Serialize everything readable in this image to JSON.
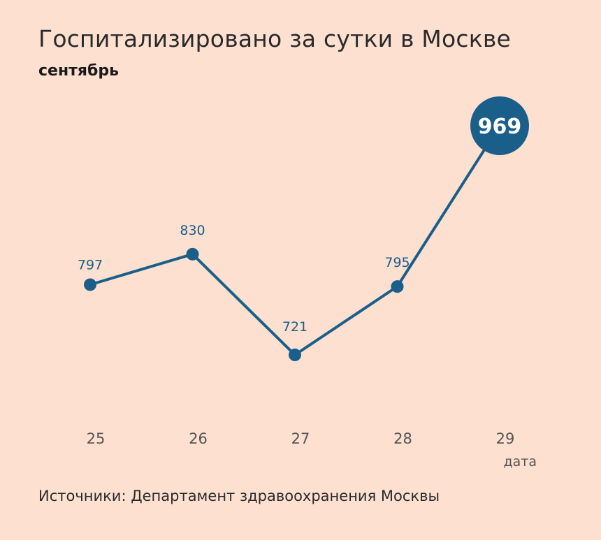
{
  "header": {
    "title": "Госпитализировано за сутки в Москве",
    "subtitle": "сентябрь"
  },
  "footer": {
    "source": "Источники: Департамент здравоохранения Москвы"
  },
  "colors": {
    "background": "#fde0d0",
    "line": "#1a5e8a",
    "highlight": "#1a5e8a"
  },
  "chart_data": {
    "type": "line",
    "title": "Госпитализировано за сутки в Москве",
    "subtitle": "сентябрь",
    "xlabel": "дата",
    "ylabel": "",
    "categories": [
      "25",
      "26",
      "27",
      "28",
      "29"
    ],
    "series": [
      {
        "values": [
          797,
          830,
          721,
          795,
          969
        ]
      }
    ],
    "data_labels": [
      "797",
      "830",
      "721",
      "795",
      "969"
    ],
    "highlight_index": 4,
    "grid": false,
    "legend": "none"
  }
}
